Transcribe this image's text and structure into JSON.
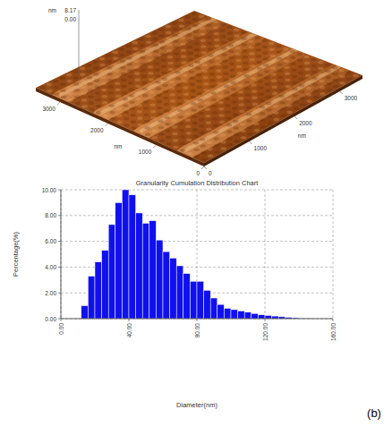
{
  "chart_data": {
    "type": "histogram",
    "title": "Granularity Cumulation Distribution Chart",
    "x_label": "Diameter(nm)",
    "y_label": "Percentage(%)",
    "bins": [
      12,
      16,
      20,
      24,
      28,
      32,
      36,
      40,
      44,
      48,
      52,
      56,
      60,
      64,
      68,
      72,
      76,
      80,
      84,
      88,
      92,
      96,
      100,
      104,
      108,
      112,
      116,
      120,
      124,
      128,
      132,
      136,
      140,
      144,
      148
    ],
    "values": [
      1.0,
      3.3,
      4.4,
      5.3,
      7.3,
      9.0,
      10.0,
      9.6,
      8.2,
      7.4,
      7.6,
      6.1,
      5.2,
      4.7,
      4.1,
      3.5,
      2.9,
      2.9,
      2.2,
      1.6,
      1.1,
      0.8,
      0.7,
      0.6,
      0.5,
      0.4,
      0.3,
      0.25,
      0.2,
      0.15,
      0.1,
      0.07,
      0.05,
      0.03
    ],
    "color": "#1010ee",
    "xlim": [
      0,
      160
    ],
    "xticks": [
      {
        "value": 0,
        "label": "0.00"
      },
      {
        "value": 40,
        "label": "40.00"
      },
      {
        "value": 80,
        "label": "80.00"
      },
      {
        "value": 120,
        "label": "120.00"
      },
      {
        "value": 160,
        "label": "160.00"
      }
    ],
    "ylim": [
      0,
      10
    ],
    "yticks": [
      {
        "value": 0,
        "label": "0.00"
      },
      {
        "value": 2,
        "label": "2.00"
      },
      {
        "value": 4,
        "label": "4.00"
      },
      {
        "value": 6,
        "label": "6.00"
      },
      {
        "value": 8,
        "label": "8.00"
      },
      {
        "value": 10,
        "label": "10.00"
      }
    ],
    "grid": true
  },
  "afm_image": {
    "z_unit": "nm",
    "z_max_label": "8.17",
    "z_min_label": "0.00",
    "x_unit": "nm",
    "xlim": [
      0,
      3500
    ],
    "xticks": [
      0,
      1000,
      2000,
      3000
    ],
    "y_unit": "nm",
    "ylim": [
      0,
      3500
    ],
    "yticks": [
      0,
      1000,
      2000,
      3000
    ]
  },
  "panel_label": "(b)"
}
